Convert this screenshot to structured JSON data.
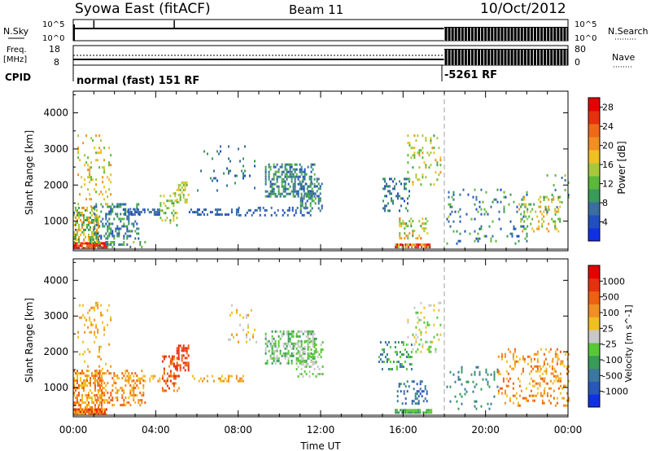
{
  "header": {
    "station": "Syowa East (fitACF)",
    "beam": "Beam 11",
    "date": "10/Oct/2012"
  },
  "status_panels": {
    "nsky_label": "N.Sky",
    "nsky_ticks": [
      "10^5",
      "10^0"
    ],
    "nsearch_label": "N.Search",
    "nsearch_ticks": [
      "10^5",
      "10^0"
    ],
    "freq_label_top": "Freq.",
    "freq_label_unit": "[MHz]",
    "freq_ticks": [
      "18",
      "8"
    ],
    "nave_label": "Nave",
    "nave_ticks": [
      "80",
      "0"
    ],
    "cpid_label": "CPID",
    "cpid_mode_1": "normal (fast) 151 RF",
    "cpid_mode_2": "-5261 RF"
  },
  "chart_data": [
    {
      "type": "heatmap",
      "panel": "power",
      "ylabel": "Slant Range [km]",
      "xlabel": "Time UT",
      "x_ticks": [
        "00:00",
        "04:00",
        "08:00",
        "12:00",
        "16:00",
        "20:00",
        "00:00"
      ],
      "x_range_hours": [
        0,
        24
      ],
      "y_ticks": [
        1000,
        2000,
        3000,
        4000
      ],
      "ylim": [
        180,
        4600
      ],
      "mode_change_hour": 18.0,
      "colorbar": {
        "label": "Power [dB]",
        "ticks": [
          "4",
          "8",
          "12",
          "16",
          "20",
          "24",
          "28"
        ],
        "range": [
          0,
          30
        ],
        "colors": [
          "#1030e8",
          "#2050c0",
          "#3a6ea0",
          "#3a9a5a",
          "#5ab83a",
          "#a8c83a",
          "#f0c020",
          "#f09020",
          "#f06818",
          "#e83010",
          "#e80000"
        ]
      },
      "clusters": [
        {
          "t0": 0.0,
          "t1": 1.6,
          "r0": 230,
          "r1": 420,
          "v0": 22,
          "v1": 30,
          "d": 0.85
        },
        {
          "t0": 0.0,
          "t1": 1.2,
          "r0": 430,
          "r1": 1400,
          "v0": 8,
          "v1": 22,
          "d": 0.55
        },
        {
          "t0": 0.2,
          "t1": 1.8,
          "r0": 1400,
          "r1": 3400,
          "v0": 12,
          "v1": 22,
          "d": 0.12
        },
        {
          "t0": 1.0,
          "t1": 3.5,
          "r0": 250,
          "r1": 450,
          "v0": 6,
          "v1": 14,
          "d": 0.22
        },
        {
          "t0": 1.0,
          "t1": 3.2,
          "r0": 500,
          "r1": 1500,
          "v0": 4,
          "v1": 12,
          "d": 0.35
        },
        {
          "t0": 2.4,
          "t1": 4.2,
          "r0": 1150,
          "r1": 1350,
          "v0": 3,
          "v1": 8,
          "d": 0.45
        },
        {
          "t0": 4.2,
          "t1": 5.0,
          "r0": 900,
          "r1": 1800,
          "v0": 10,
          "v1": 18,
          "d": 0.25
        },
        {
          "t0": 5.0,
          "t1": 5.6,
          "r0": 1500,
          "r1": 2100,
          "v0": 12,
          "v1": 18,
          "d": 0.5
        },
        {
          "t0": 5.6,
          "t1": 8.0,
          "r0": 1150,
          "r1": 1350,
          "v0": 3,
          "v1": 8,
          "d": 0.4
        },
        {
          "t0": 6.0,
          "t1": 8.8,
          "r0": 1800,
          "r1": 3100,
          "v0": 4,
          "v1": 10,
          "d": 0.06
        },
        {
          "t0": 8.0,
          "t1": 11.5,
          "r0": 1150,
          "r1": 1400,
          "v0": 3,
          "v1": 8,
          "d": 0.28
        },
        {
          "t0": 9.3,
          "t1": 11.7,
          "r0": 1700,
          "r1": 2600,
          "v0": 4,
          "v1": 12,
          "d": 0.5
        },
        {
          "t0": 11.0,
          "t1": 12.1,
          "r0": 1300,
          "r1": 2200,
          "v0": 4,
          "v1": 12,
          "d": 0.32
        },
        {
          "t0": 15.0,
          "t1": 16.3,
          "r0": 1300,
          "r1": 2200,
          "v0": 4,
          "v1": 10,
          "d": 0.25
        },
        {
          "t0": 15.6,
          "t1": 17.3,
          "r0": 280,
          "r1": 380,
          "v0": 14,
          "v1": 30,
          "d": 0.85
        },
        {
          "t0": 15.8,
          "t1": 17.2,
          "r0": 550,
          "r1": 1100,
          "v0": 8,
          "v1": 22,
          "d": 0.3
        },
        {
          "t0": 16.2,
          "t1": 17.8,
          "r0": 2000,
          "r1": 3400,
          "v0": 10,
          "v1": 20,
          "d": 0.15
        },
        {
          "t0": 18.1,
          "t1": 22.0,
          "r0": 400,
          "r1": 1900,
          "v0": 2,
          "v1": 14,
          "d": 0.09
        },
        {
          "t0": 21.6,
          "t1": 23.6,
          "r0": 700,
          "r1": 1700,
          "v0": 10,
          "v1": 22,
          "d": 0.22
        },
        {
          "t0": 22.8,
          "t1": 24.0,
          "r0": 1200,
          "r1": 2300,
          "v0": 4,
          "v1": 14,
          "d": 0.12
        }
      ]
    },
    {
      "type": "heatmap",
      "panel": "velocity",
      "ylabel": "Slant Range [km]",
      "xlabel": "Time UT",
      "x_ticks": [
        "00:00",
        "04:00",
        "08:00",
        "12:00",
        "16:00",
        "20:00",
        "00:00"
      ],
      "x_range_hours": [
        0,
        24
      ],
      "y_ticks": [
        1000,
        2000,
        3000,
        4000
      ],
      "ylim": [
        180,
        4600
      ],
      "mode_change_hour": 18.0,
      "colorbar": {
        "label": "Velocity [m s^-1]",
        "ticks": [
          "1000",
          "500",
          "100",
          "25",
          "-25",
          "-100",
          "-500",
          "-1000"
        ],
        "colors": [
          "#1030e8",
          "#2858b8",
          "#3a78a0",
          "#3a9a5a",
          "#58c838",
          "#c8c8c8",
          "#f0c020",
          "#f09020",
          "#f06010",
          "#e83010",
          "#e80000"
        ]
      },
      "clusters": [
        {
          "t0": 0.0,
          "t1": 1.6,
          "r0": 230,
          "r1": 420,
          "v0": 6,
          "v1": 10,
          "d": 0.85
        },
        {
          "t0": 0.0,
          "t1": 1.4,
          "r0": 430,
          "r1": 1500,
          "v0": 6,
          "v1": 9,
          "d": 0.55
        },
        {
          "t0": 0.2,
          "t1": 1.8,
          "r0": 1500,
          "r1": 3400,
          "v0": 6,
          "v1": 8,
          "d": 0.12
        },
        {
          "t0": 1.0,
          "t1": 3.5,
          "r0": 500,
          "r1": 1500,
          "v0": 6,
          "v1": 9,
          "d": 0.3
        },
        {
          "t0": 2.5,
          "t1": 4.2,
          "r0": 1150,
          "r1": 1350,
          "v0": 6,
          "v1": 8,
          "d": 0.42
        },
        {
          "t0": 4.3,
          "t1": 5.1,
          "r0": 900,
          "r1": 1900,
          "v0": 7,
          "v1": 10,
          "d": 0.35
        },
        {
          "t0": 5.0,
          "t1": 5.6,
          "r0": 1500,
          "r1": 2200,
          "v0": 8,
          "v1": 10,
          "d": 0.5
        },
        {
          "t0": 5.6,
          "t1": 8.5,
          "r0": 1150,
          "r1": 1350,
          "v0": 6,
          "v1": 8,
          "d": 0.32
        },
        {
          "t0": 7.5,
          "t1": 9.0,
          "r0": 2200,
          "r1": 3400,
          "v0": 5,
          "v1": 8,
          "d": 0.08
        },
        {
          "t0": 9.3,
          "t1": 11.8,
          "r0": 1700,
          "r1": 2600,
          "v0": 3,
          "v1": 6,
          "d": 0.45
        },
        {
          "t0": 10.8,
          "t1": 12.1,
          "r0": 1300,
          "r1": 2300,
          "v0": 4,
          "v1": 6,
          "d": 0.28
        },
        {
          "t0": 14.8,
          "t1": 16.4,
          "r0": 1500,
          "r1": 2300,
          "v0": 2,
          "v1": 5,
          "d": 0.25
        },
        {
          "t0": 15.6,
          "t1": 17.4,
          "r0": 280,
          "r1": 400,
          "v0": 3,
          "v1": 5,
          "d": 0.85
        },
        {
          "t0": 15.7,
          "t1": 17.2,
          "r0": 550,
          "r1": 1200,
          "v0": 1,
          "v1": 4,
          "d": 0.3
        },
        {
          "t0": 16.2,
          "t1": 17.8,
          "r0": 2000,
          "r1": 3400,
          "v0": 4,
          "v1": 7,
          "d": 0.16
        },
        {
          "t0": 18.1,
          "t1": 20.6,
          "r0": 400,
          "r1": 1600,
          "v0": 2,
          "v1": 4,
          "d": 0.09
        },
        {
          "t0": 20.6,
          "t1": 24.0,
          "r0": 500,
          "r1": 2100,
          "v0": 6,
          "v1": 9,
          "d": 0.16
        },
        {
          "t0": 22.6,
          "t1": 24.0,
          "r0": 1000,
          "r1": 1900,
          "v0": 6,
          "v1": 8,
          "d": 0.2
        }
      ]
    }
  ]
}
